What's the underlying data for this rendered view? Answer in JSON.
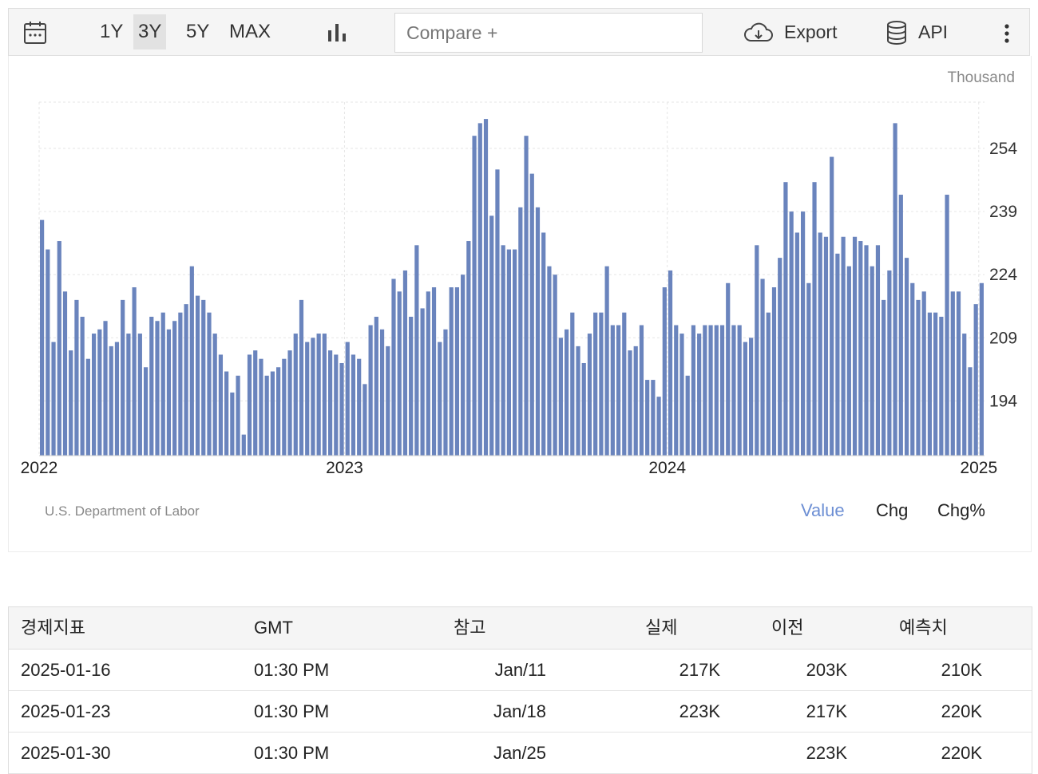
{
  "toolbar": {
    "ranges": [
      "1Y",
      "3Y",
      "5Y",
      "MAX"
    ],
    "active_range": "3Y",
    "compare_placeholder": "Compare +",
    "export_label": "Export",
    "api_label": "API",
    "icons": [
      "calendar-icon",
      "bar-chart-icon",
      "cloud-download-icon",
      "database-icon",
      "more-vertical-icon"
    ]
  },
  "chart": {
    "unit_label": "Thousand",
    "source": "U.S. Department of Labor",
    "modes": [
      "Value",
      "Chg",
      "Chg%"
    ],
    "active_mode": "Value",
    "accent": "#6d8fd4",
    "bar_color": "#6a84bd"
  },
  "chart_data": {
    "type": "bar",
    "x_tick_labels": [
      "2022",
      "2023",
      "2024",
      "2025"
    ],
    "y_tick_labels": [
      254,
      239,
      224,
      209,
      194
    ],
    "ylim": [
      181,
      265
    ],
    "grid": true,
    "values": [
      237,
      230,
      208,
      232,
      220,
      206,
      218,
      214,
      204,
      210,
      211,
      213,
      207,
      208,
      218,
      210,
      221,
      210,
      202,
      214,
      213,
      215,
      211,
      213,
      215,
      217,
      226,
      219,
      218,
      215,
      210,
      205,
      201,
      196,
      200,
      186,
      205,
      206,
      204,
      200,
      201,
      202,
      204,
      206,
      210,
      218,
      208,
      209,
      210,
      210,
      206,
      205,
      203,
      208,
      205,
      204,
      198,
      212,
      214,
      211,
      207,
      223,
      220,
      225,
      214,
      231,
      216,
      220,
      221,
      208,
      211,
      221,
      221,
      224,
      232,
      257,
      260,
      261,
      238,
      249,
      231,
      230,
      230,
      240,
      257,
      248,
      240,
      234,
      226,
      224,
      209,
      211,
      215,
      207,
      203,
      210,
      215,
      215,
      226,
      212,
      212,
      215,
      206,
      207,
      212,
      199,
      199,
      195,
      221,
      225,
      212,
      210,
      200,
      212,
      210,
      212,
      212,
      212,
      212,
      222,
      212,
      212,
      208,
      209,
      231,
      223,
      215,
      221,
      228,
      246,
      239,
      234,
      239,
      222,
      246,
      234,
      233,
      252,
      229,
      233,
      226,
      233,
      232,
      231,
      226,
      231,
      218,
      225,
      260,
      243,
      228,
      222,
      218,
      220,
      215,
      215,
      214,
      243,
      220,
      220,
      210,
      202,
      217,
      222
    ]
  },
  "table": {
    "headers": [
      "경제지표",
      "GMT",
      "참고",
      "실제",
      "이전",
      "예측치"
    ],
    "rows": [
      [
        "2025-01-16",
        "01:30 PM",
        "Jan/11",
        "217K",
        "203K",
        "210K"
      ],
      [
        "2025-01-23",
        "01:30 PM",
        "Jan/18",
        "223K",
        "217K",
        "220K"
      ],
      [
        "2025-01-30",
        "01:30 PM",
        "Jan/25",
        "",
        "223K",
        "220K"
      ]
    ]
  }
}
